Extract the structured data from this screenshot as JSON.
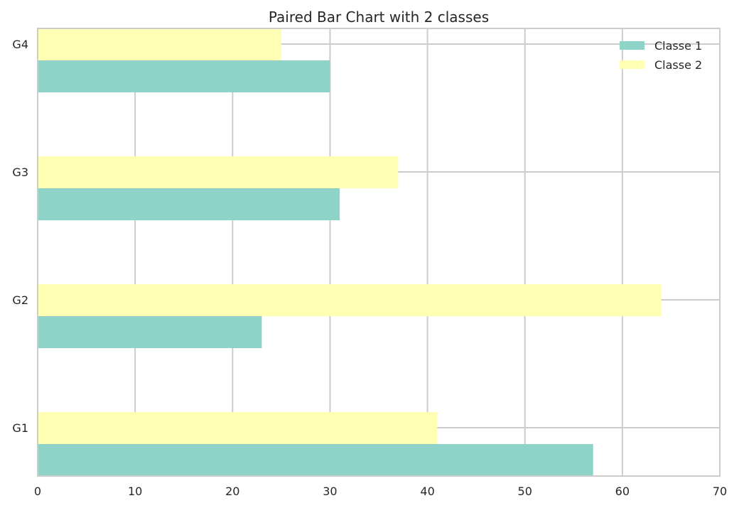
{
  "chart_data": {
    "type": "bar",
    "orientation": "horizontal",
    "title": "Paired Bar Chart with 2 classes",
    "categories": [
      "G1",
      "G2",
      "G3",
      "G4"
    ],
    "series": [
      {
        "name": "Classe 1",
        "values": [
          57,
          23,
          31,
          30
        ],
        "color": "#8dd3c7"
      },
      {
        "name": "Classe 2",
        "values": [
          41,
          64,
          37,
          25
        ],
        "color": "#ffffb3"
      }
    ],
    "xlim": [
      0,
      70
    ],
    "x_ticks": [
      "0",
      "10",
      "20",
      "30",
      "40",
      "50",
      "60",
      "70"
    ],
    "xlabel": "",
    "ylabel": "",
    "grid": true,
    "legend": "top-right"
  }
}
